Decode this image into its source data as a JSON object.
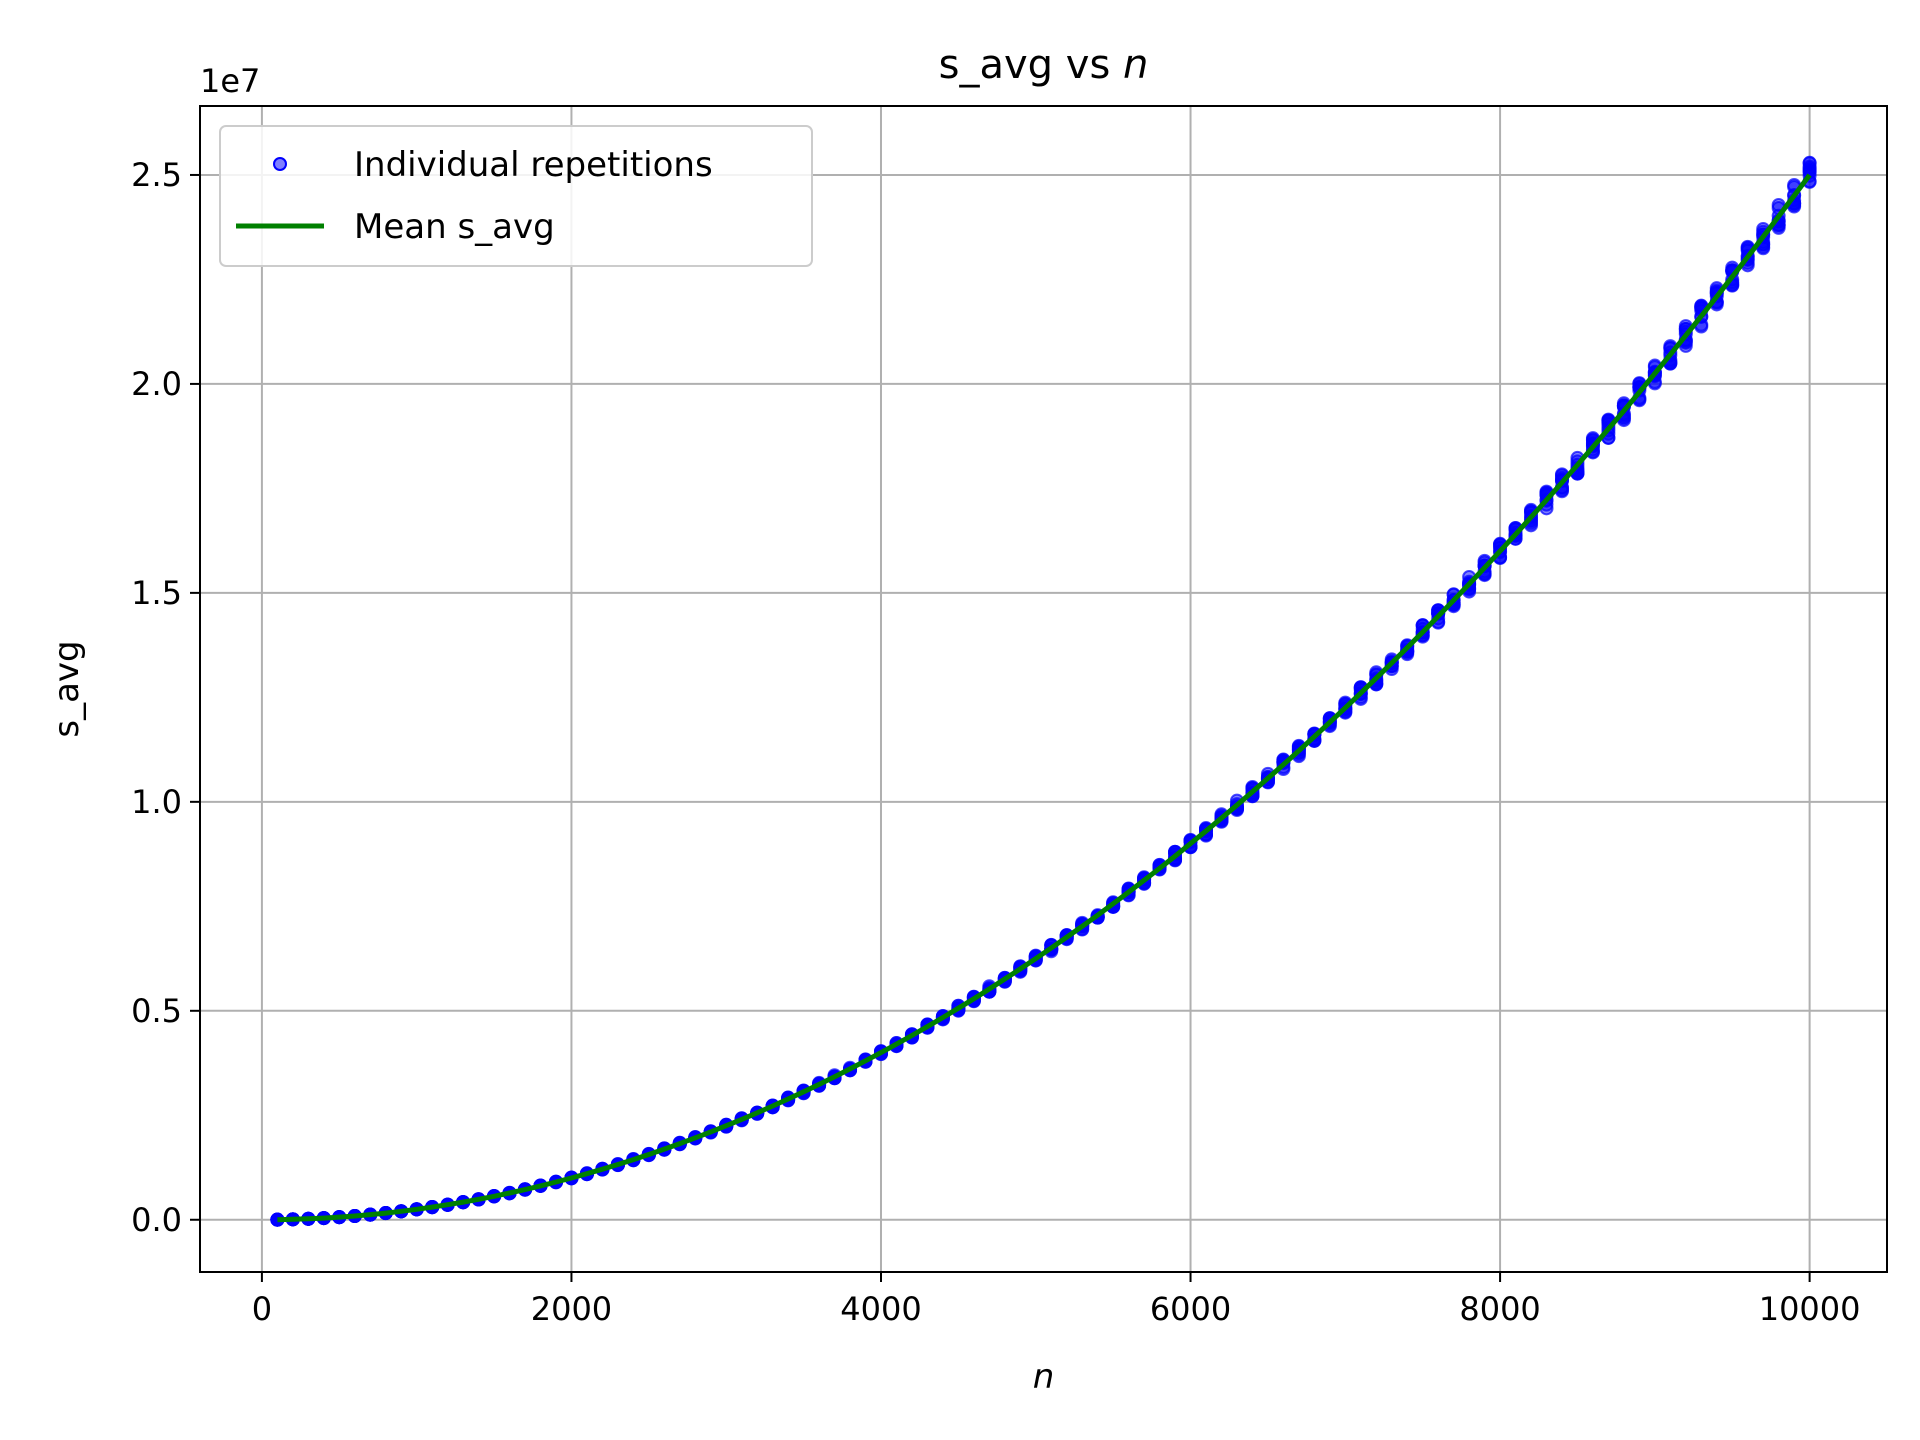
{
  "chart_data": {
    "type": "scatter",
    "title_prefix": "s_avg vs ",
    "title_var": "n",
    "xlabel": "n",
    "ylabel": "s_avg",
    "y_offset_text": "1e7",
    "xlim": [
      -400,
      10500
    ],
    "ylim": [
      -1250000,
      26650000
    ],
    "x_ticks": [
      0,
      2000,
      4000,
      6000,
      8000,
      10000
    ],
    "x_tick_labels": [
      "0",
      "2000",
      "4000",
      "6000",
      "8000",
      "10000"
    ],
    "y_ticks": [
      0,
      5000000,
      10000000,
      15000000,
      20000000,
      25000000
    ],
    "y_tick_labels": [
      "0.0",
      "0.5",
      "1.0",
      "1.5",
      "2.0",
      "2.5"
    ],
    "grid": true,
    "legend": {
      "position": "upper-left",
      "entries": [
        {
          "label": "Individual repetitions",
          "marker": "circle",
          "color": "#0000ff"
        },
        {
          "label": "Mean s_avg",
          "marker": "line",
          "color": "#008000"
        }
      ]
    },
    "model": "s_avg ≈ n^2 / 4",
    "series": [
      {
        "name": "Individual repetitions",
        "type": "scatter",
        "color": "#0000ff",
        "x_start": 100,
        "x_end": 10000,
        "x_step": 100,
        "repetitions": 10,
        "relative_spread": 0.012
      },
      {
        "name": "Mean s_avg",
        "type": "line",
        "color": "#008000",
        "x": [
          100,
          1000,
          2000,
          3000,
          4000,
          5000,
          6000,
          7000,
          8000,
          9000,
          10000
        ],
        "y": [
          2500,
          250000,
          1000000,
          2250000,
          4000000,
          6250000,
          9000000,
          12250000,
          16000000,
          20250000,
          25000000
        ]
      }
    ]
  }
}
